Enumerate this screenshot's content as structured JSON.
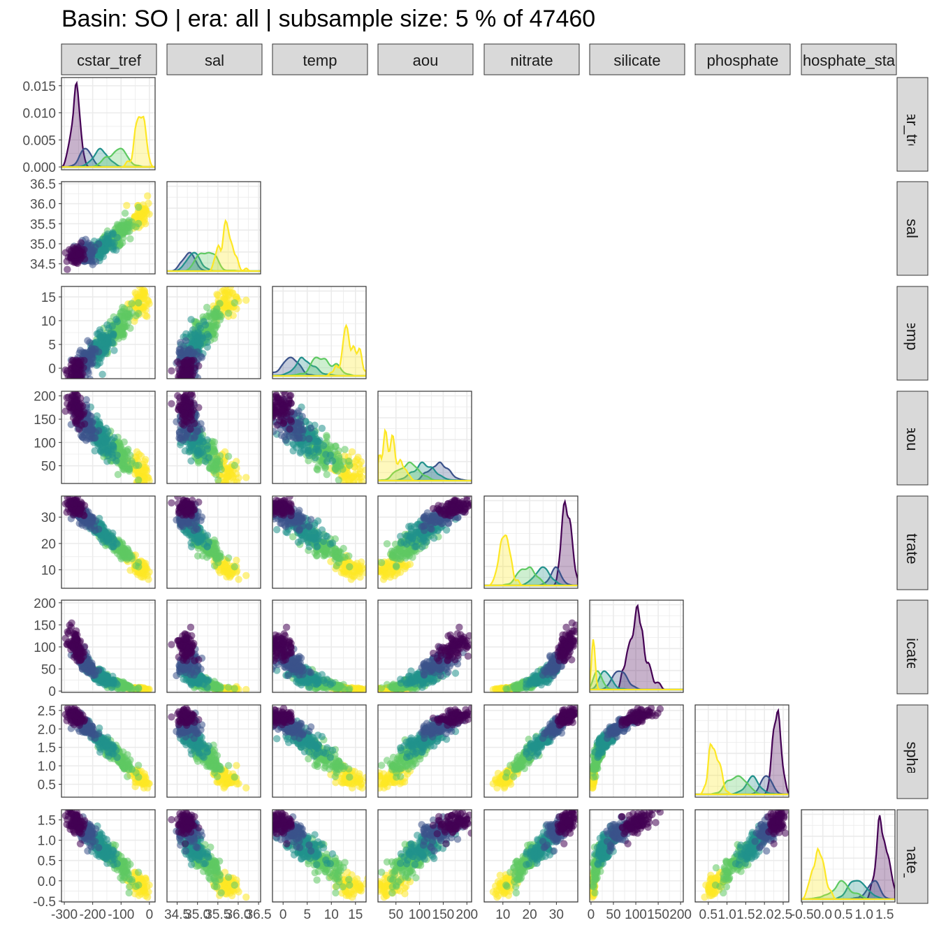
{
  "title": "Basin: SO | era: all | subsample size: 5 % of 47460",
  "colors": {
    "viridis": [
      "#440154",
      "#3b528b",
      "#21918c",
      "#5ec962",
      "#fde725"
    ],
    "strip_fill": "#d9d9d9",
    "grid": "#ebebeb",
    "panel_border": "#333333"
  },
  "chart_data": {
    "type": "scatter",
    "layout": "pairs-plot (lower triangle scatter, diagonal density)",
    "variables": [
      "cstar_tref",
      "sal",
      "temp",
      "aou",
      "nitrate",
      "silicate",
      "phosphate",
      "phosphate_star"
    ],
    "column_strip_labels": [
      "cstar_tref",
      "sal",
      "temp",
      "aou",
      "nitrate",
      "silicate",
      "phosphate",
      "hosphate_sta"
    ],
    "row_strip_labels": [
      "cstar_tref",
      "sal",
      "temp",
      "aou",
      "nitrate",
      "silicate",
      "phosphate",
      "hosphate_sta"
    ],
    "x_tick_labels": [
      [
        "-300",
        "-200",
        "-100",
        "0"
      ],
      [
        "34.5",
        "35.0",
        "35.5",
        "36.0",
        "36.5"
      ],
      [
        "0",
        "5",
        "10",
        "15"
      ],
      [
        "50",
        "100",
        "150",
        "200"
      ],
      [
        "10",
        "20",
        "30"
      ],
      [
        "0",
        "50",
        "100",
        "150",
        "200"
      ],
      [
        "0.5",
        "1.0",
        "1.5",
        "2.0",
        "2.5"
      ],
      [
        "-0.5",
        "0.0",
        "0.5",
        "1.0",
        "1.5"
      ]
    ],
    "x_tick_text": [
      [
        "-300",
        "-200",
        "-100",
        "0"
      ],
      [
        "34.5",
        "35.0",
        "35.5",
        "36.0",
        "36.5"
      ],
      [
        "0",
        "5",
        "10",
        "15"
      ],
      [
        "50",
        "100",
        "150",
        "200"
      ],
      [
        "10",
        "20",
        "30"
      ],
      [
        "0",
        "50",
        "100",
        "150",
        "200"
      ],
      [
        "0.5",
        "1.0",
        "1.5",
        "2.0",
        "2.5"
      ],
      [
        "-0.5",
        "0.0",
        "0.5",
        "1.0",
        "1.5"
      ]
    ],
    "y_tick_labels": [
      [
        "0.000",
        "0.005",
        "0.010",
        "0.015"
      ],
      [
        "34.5",
        "35.0",
        "35.5",
        "36.0",
        "36.5"
      ],
      [
        "0",
        "5",
        "10",
        "15"
      ],
      [
        "50",
        "100",
        "150",
        "200"
      ],
      [
        "10",
        "20",
        "30"
      ],
      [
        "0",
        "50",
        "100",
        "150",
        "200"
      ],
      [
        "0.5",
        "1.0",
        "1.5",
        "2.0",
        "2.5"
      ],
      [
        "-0.5",
        "0.0",
        "0.5",
        "1.0",
        "1.5"
      ]
    ],
    "ranges": {
      "cstar_tref": [
        -310,
        20
      ],
      "sal": [
        34.25,
        36.55
      ],
      "temp": [
        -2.2,
        17.2
      ],
      "aou": [
        12,
        210
      ],
      "nitrate": [
        3,
        38
      ],
      "silicate": [
        -3,
        206
      ],
      "phosphate": [
        0.15,
        2.65
      ],
      "phosphate_star": [
        -0.52,
        1.75
      ]
    },
    "diagonal_density_ymax": 0.016,
    "color_groups": 5,
    "grid": true
  }
}
